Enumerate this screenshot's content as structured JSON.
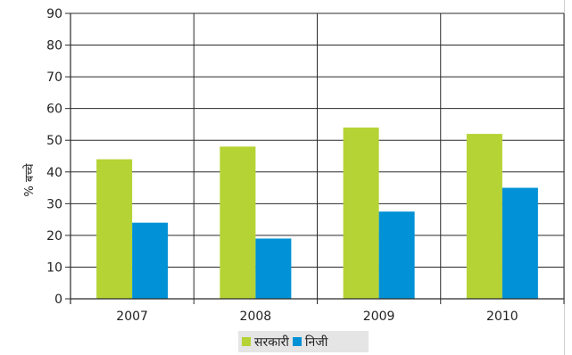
{
  "chart_data": {
    "type": "bar",
    "categories": [
      "2007",
      "2008",
      "2009",
      "2010"
    ],
    "series": [
      {
        "name": "सरकारी",
        "color": "#b5d334",
        "values": [
          44,
          48,
          54,
          52
        ]
      },
      {
        "name": "निजी",
        "color": "#0091d6",
        "values": [
          24,
          19,
          27.5,
          35
        ]
      }
    ],
    "ylabel": "% बच्चे",
    "xlabel": "",
    "ylim": [
      0,
      90
    ],
    "yticks": [
      "0",
      "10",
      "20",
      "30",
      "40",
      "50",
      "60",
      "70",
      "80",
      "90"
    ],
    "grid": true,
    "legend_position": "bottom-center"
  }
}
